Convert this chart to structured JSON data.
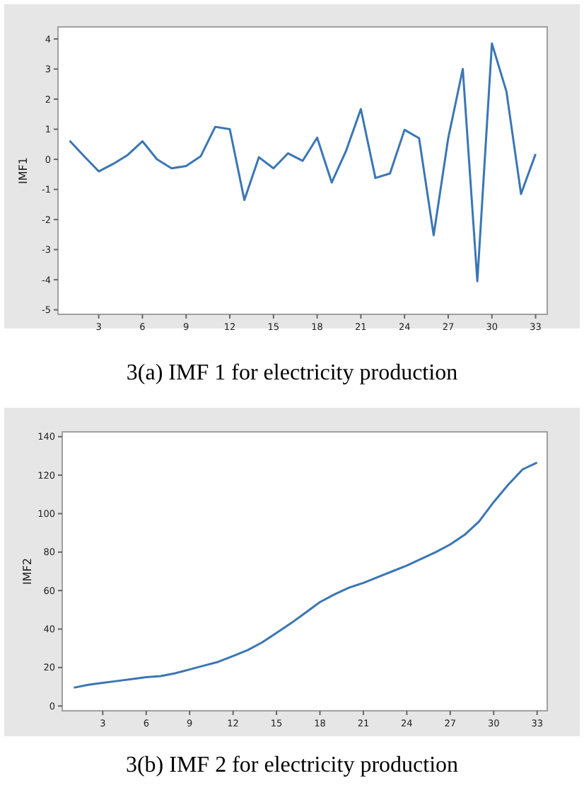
{
  "chart_data": [
    {
      "type": "line",
      "title": "3(a) IMF 1 for electricity production",
      "ylabel": "IMF1",
      "x": [
        1,
        2,
        3,
        4,
        5,
        6,
        7,
        8,
        9,
        10,
        11,
        12,
        13,
        14,
        15,
        16,
        17,
        18,
        19,
        20,
        21,
        22,
        23,
        24,
        25,
        26,
        27,
        28,
        29,
        30,
        31,
        32,
        33
      ],
      "series": [
        {
          "color": "#3a76b5",
          "values": [
            0.62,
            0.1,
            -0.4,
            -0.15,
            0.15,
            0.6,
            0,
            -0.3,
            -0.22,
            0.1,
            1.08,
            1.0,
            -1.35,
            0.07,
            -0.3,
            0.2,
            -0.05,
            0.72,
            -0.77,
            0.3,
            1.67,
            -0.62,
            -0.47,
            0.98,
            0.7,
            -2.52,
            0.7,
            3.0,
            -4.05,
            3.85,
            2.25,
            -1.15,
            0.18
          ]
        }
      ],
      "xlim": [
        0.2,
        33.8
      ],
      "xticks": [
        3,
        6,
        9,
        12,
        15,
        18,
        21,
        24,
        27,
        30,
        33
      ],
      "ylim": [
        -5.15,
        4.4
      ],
      "yticks": [
        -5,
        -4,
        -3,
        -2,
        -1,
        0,
        1,
        2,
        3,
        4
      ]
    },
    {
      "type": "line",
      "title": "3(b) IMF 2 for electricity production",
      "ylabel": "IMF2",
      "x": [
        1,
        2,
        3,
        4,
        5,
        6,
        7,
        8,
        9,
        10,
        11,
        12,
        13,
        14,
        15,
        16,
        17,
        18,
        19,
        20,
        21,
        22,
        23,
        24,
        25,
        26,
        27,
        28,
        29,
        30,
        31,
        32,
        33
      ],
      "series": [
        {
          "color": "#3a76b5",
          "values": [
            9.5,
            11,
            12,
            13,
            14,
            15,
            15.5,
            17,
            19,
            21,
            23,
            26,
            29,
            33,
            38,
            43,
            48.5,
            54,
            58,
            61.5,
            64,
            67,
            70,
            73,
            76.5,
            80,
            84,
            89,
            96,
            106,
            115,
            123,
            126.5
          ]
        }
      ],
      "xlim": [
        0.2,
        33.7
      ],
      "xticks": [
        3,
        6,
        9,
        12,
        15,
        18,
        21,
        24,
        27,
        30,
        33
      ],
      "ylim": [
        -2.5,
        142.5
      ],
      "yticks": [
        0,
        20,
        40,
        60,
        80,
        100,
        120,
        140
      ]
    }
  ]
}
